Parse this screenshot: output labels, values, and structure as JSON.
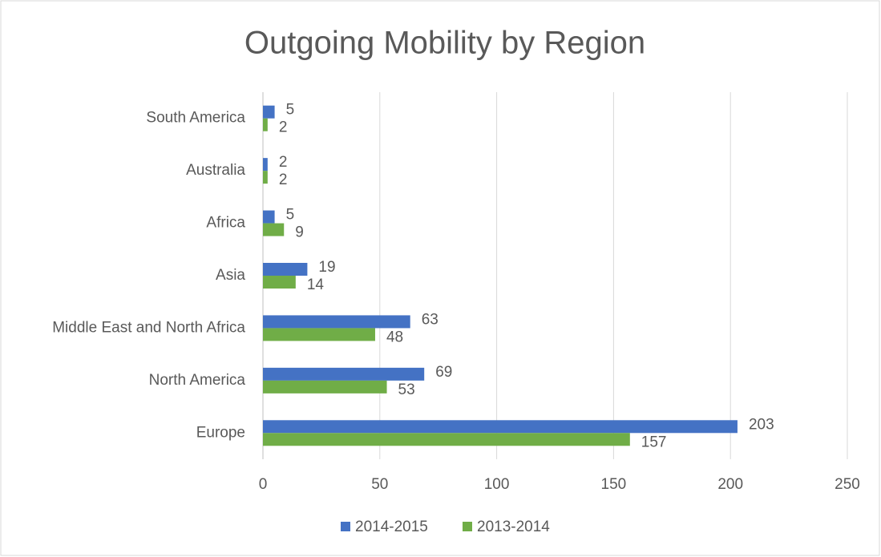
{
  "chart_data": {
    "type": "hbar",
    "title": "Outgoing Mobility by Region",
    "categories": [
      "South America",
      "Australia",
      "Africa",
      "Asia",
      "Middle East and North Africa",
      "North America",
      "Europe"
    ],
    "series": [
      {
        "name": "2014-2015",
        "color": "#4472c4",
        "values": [
          5,
          2,
          5,
          19,
          63,
          69,
          203
        ]
      },
      {
        "name": "2013-2014",
        "color": "#70ad47",
        "values": [
          2,
          2,
          9,
          14,
          48,
          53,
          157
        ]
      }
    ],
    "xlim": [
      0,
      250
    ],
    "xticks": [
      0,
      50,
      100,
      150,
      200,
      250
    ],
    "grid": true,
    "legend": "bottom"
  }
}
